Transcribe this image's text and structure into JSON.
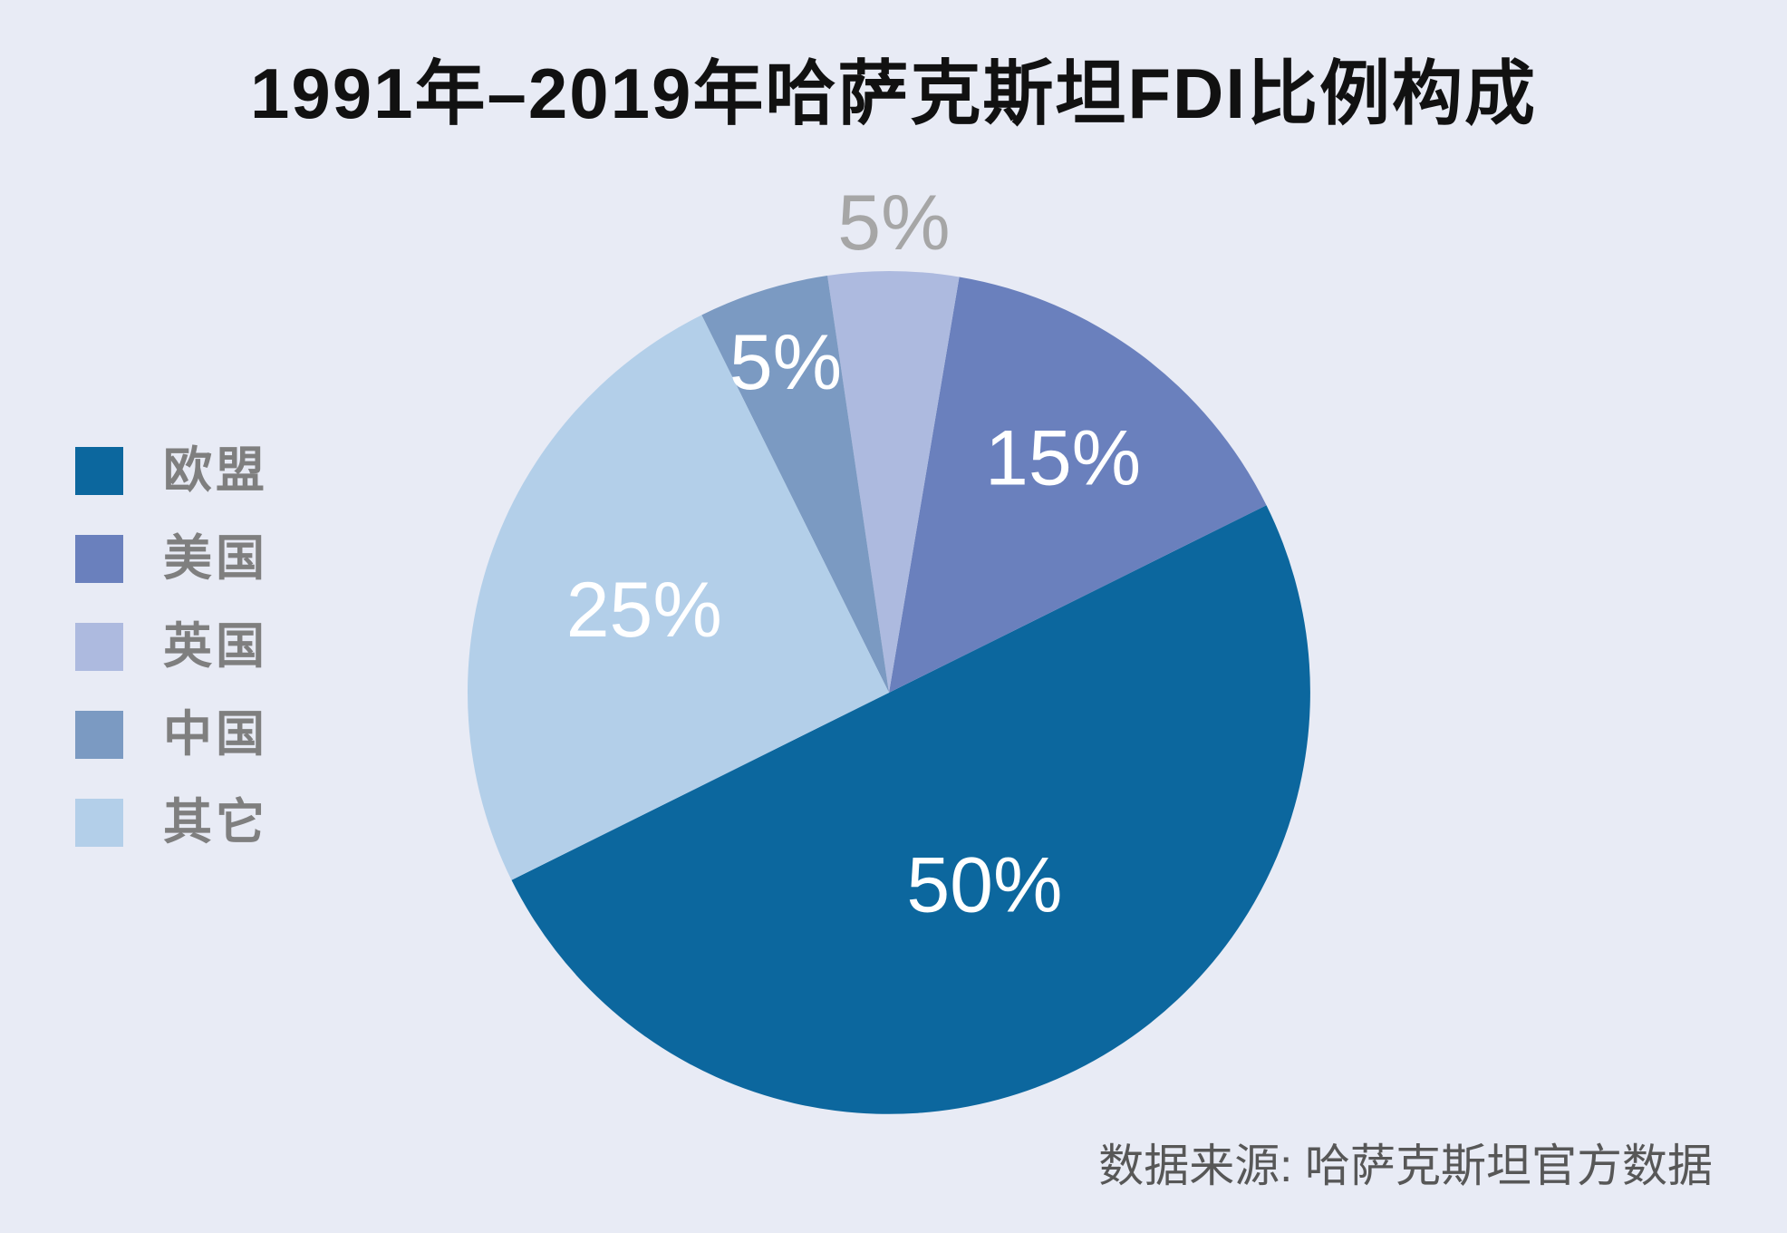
{
  "chart_data": {
    "type": "pie",
    "title": "1991年–2019年哈萨克斯坦FDI比例构成",
    "categories": [
      "欧盟",
      "美国",
      "英国",
      "中国",
      "其它"
    ],
    "values": [
      50,
      15,
      5,
      5,
      25
    ],
    "data_labels": [
      "50%",
      "15%",
      "5%",
      "5%",
      "25%"
    ],
    "colors": [
      "#0c679e",
      "#6a80bd",
      "#adbadf",
      "#7b9ac2",
      "#b3cfe9"
    ],
    "legend_position": "left",
    "source": "数据来源: 哈萨克斯坦官方数据"
  }
}
